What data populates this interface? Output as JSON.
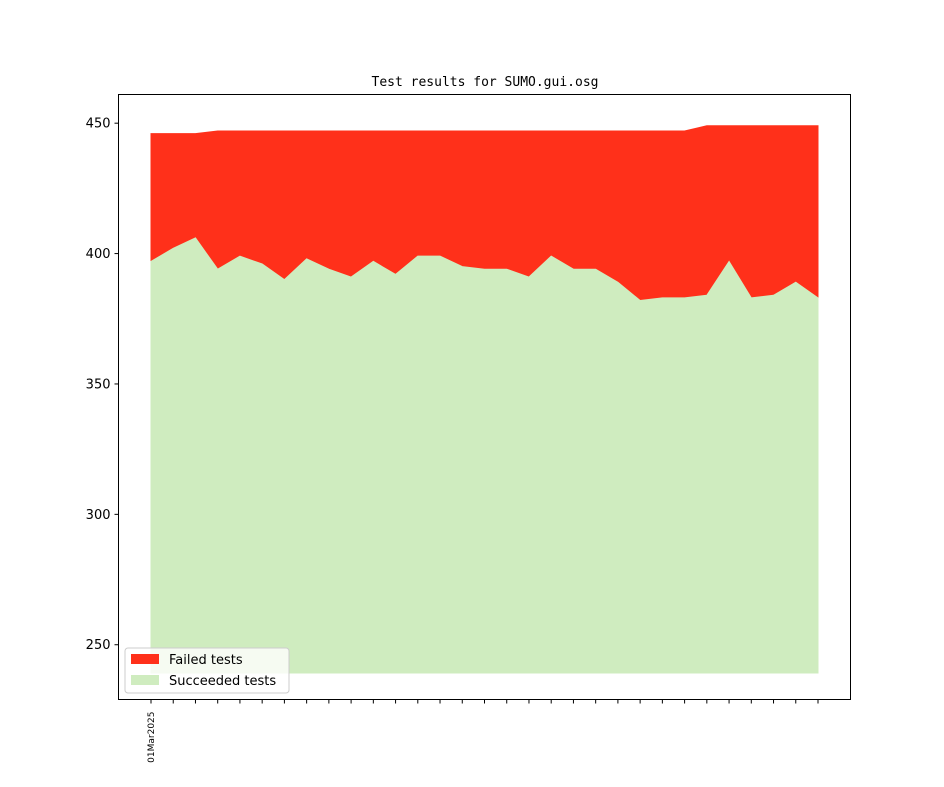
{
  "chart_data": {
    "type": "area",
    "title": "Test results for SUMO.gui.osg",
    "xlabel": "",
    "ylabel": "",
    "x_tick_labels": [
      "01Mar2025"
    ],
    "ylim": [
      229,
      461
    ],
    "yticks": [
      250,
      300,
      350,
      400,
      450
    ],
    "series": [
      {
        "name": "Succeeded tests",
        "color": "#cfecbf",
        "values": [
          397,
          402,
          406,
          394,
          399,
          396,
          390,
          398,
          394,
          391,
          397,
          392,
          399,
          399,
          395,
          394,
          394,
          391,
          399,
          394,
          394,
          389,
          382,
          383,
          383,
          384,
          397,
          383,
          384,
          389,
          383
        ]
      },
      {
        "name": "Failed tests",
        "color": "#ff301a",
        "values": [
          446,
          446,
          446,
          447,
          447,
          447,
          447,
          447,
          447,
          447,
          447,
          447,
          447,
          447,
          447,
          447,
          447,
          447,
          447,
          447,
          447,
          447,
          447,
          447,
          447,
          449,
          449,
          449,
          449,
          449,
          449
        ]
      }
    ],
    "legend": {
      "position": "lower-left",
      "items": [
        {
          "label": "Failed tests",
          "color": "#ff301a"
        },
        {
          "label": "Succeeded tests",
          "color": "#cfecbf"
        }
      ]
    },
    "grid": false
  }
}
